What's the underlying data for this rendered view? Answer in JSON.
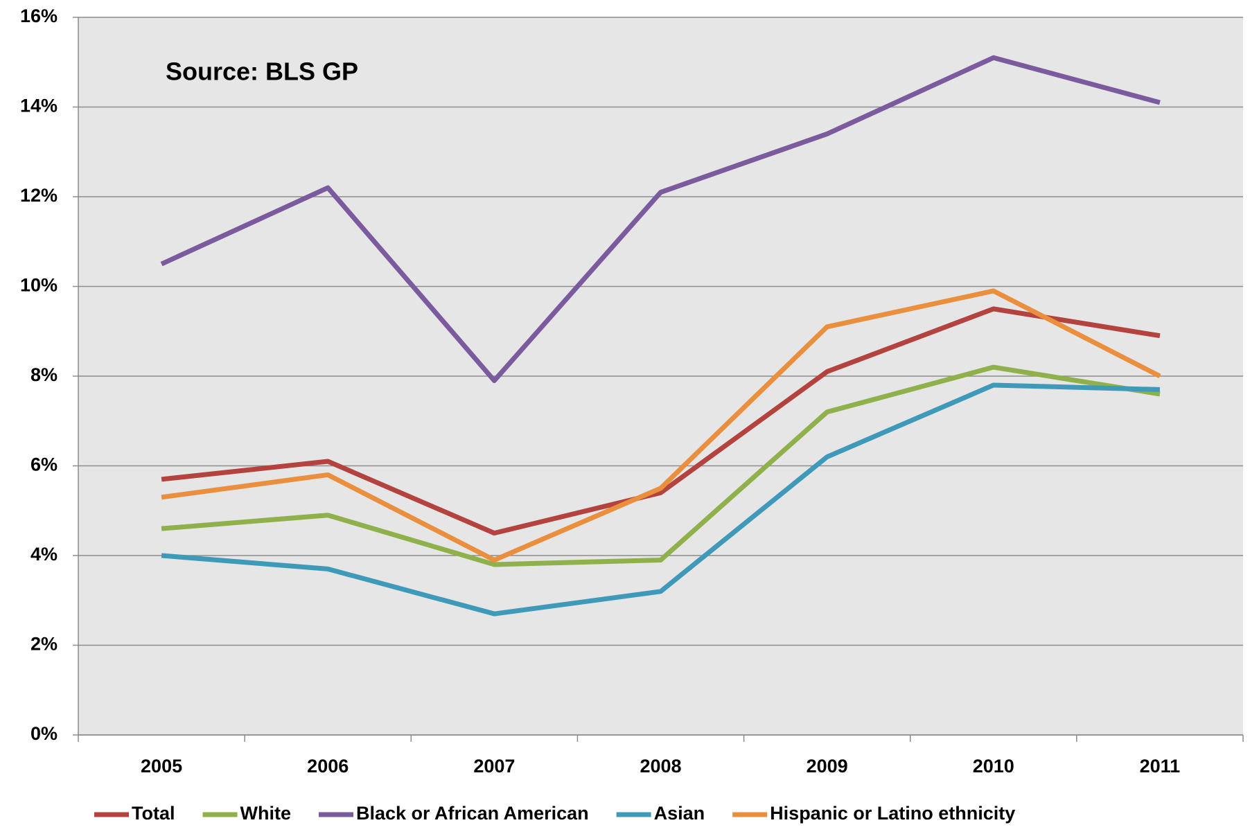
{
  "chart_data": {
    "type": "line",
    "annotation": "Source: BLS GP",
    "categories": [
      "2005",
      "2006",
      "2007",
      "2008",
      "2009",
      "2010",
      "2011"
    ],
    "series": [
      {
        "name": "Total",
        "color": "#b4423f",
        "values": [
          5.7,
          6.1,
          4.5,
          5.4,
          8.1,
          9.5,
          8.9
        ]
      },
      {
        "name": "White",
        "color": "#8fb04a",
        "values": [
          4.6,
          4.9,
          3.8,
          3.9,
          7.2,
          8.2,
          7.6
        ]
      },
      {
        "name": "Black or African American",
        "color": "#7b5a9e",
        "values": [
          10.5,
          12.2,
          7.9,
          12.1,
          13.4,
          15.1,
          14.1
        ]
      },
      {
        "name": "Asian",
        "color": "#3e9ab8",
        "values": [
          4.0,
          3.7,
          2.7,
          3.2,
          6.2,
          7.8,
          7.7
        ]
      },
      {
        "name": "Hispanic or Latino ethnicity",
        "color": "#e98f3e",
        "values": [
          5.3,
          5.8,
          3.9,
          5.5,
          9.1,
          9.9,
          8.0
        ]
      }
    ],
    "ylim": [
      0,
      16
    ],
    "yticks": [
      {
        "value": 0,
        "label": "0%"
      },
      {
        "value": 2,
        "label": "2%"
      },
      {
        "value": 4,
        "label": "4%"
      },
      {
        "value": 6,
        "label": "6%"
      },
      {
        "value": 8,
        "label": "8%"
      },
      {
        "value": 10,
        "label": "10%"
      },
      {
        "value": 12,
        "label": "12%"
      },
      {
        "value": 14,
        "label": "14%"
      },
      {
        "value": 16,
        "label": "16%"
      }
    ],
    "grid": true,
    "legend": "bottom"
  }
}
